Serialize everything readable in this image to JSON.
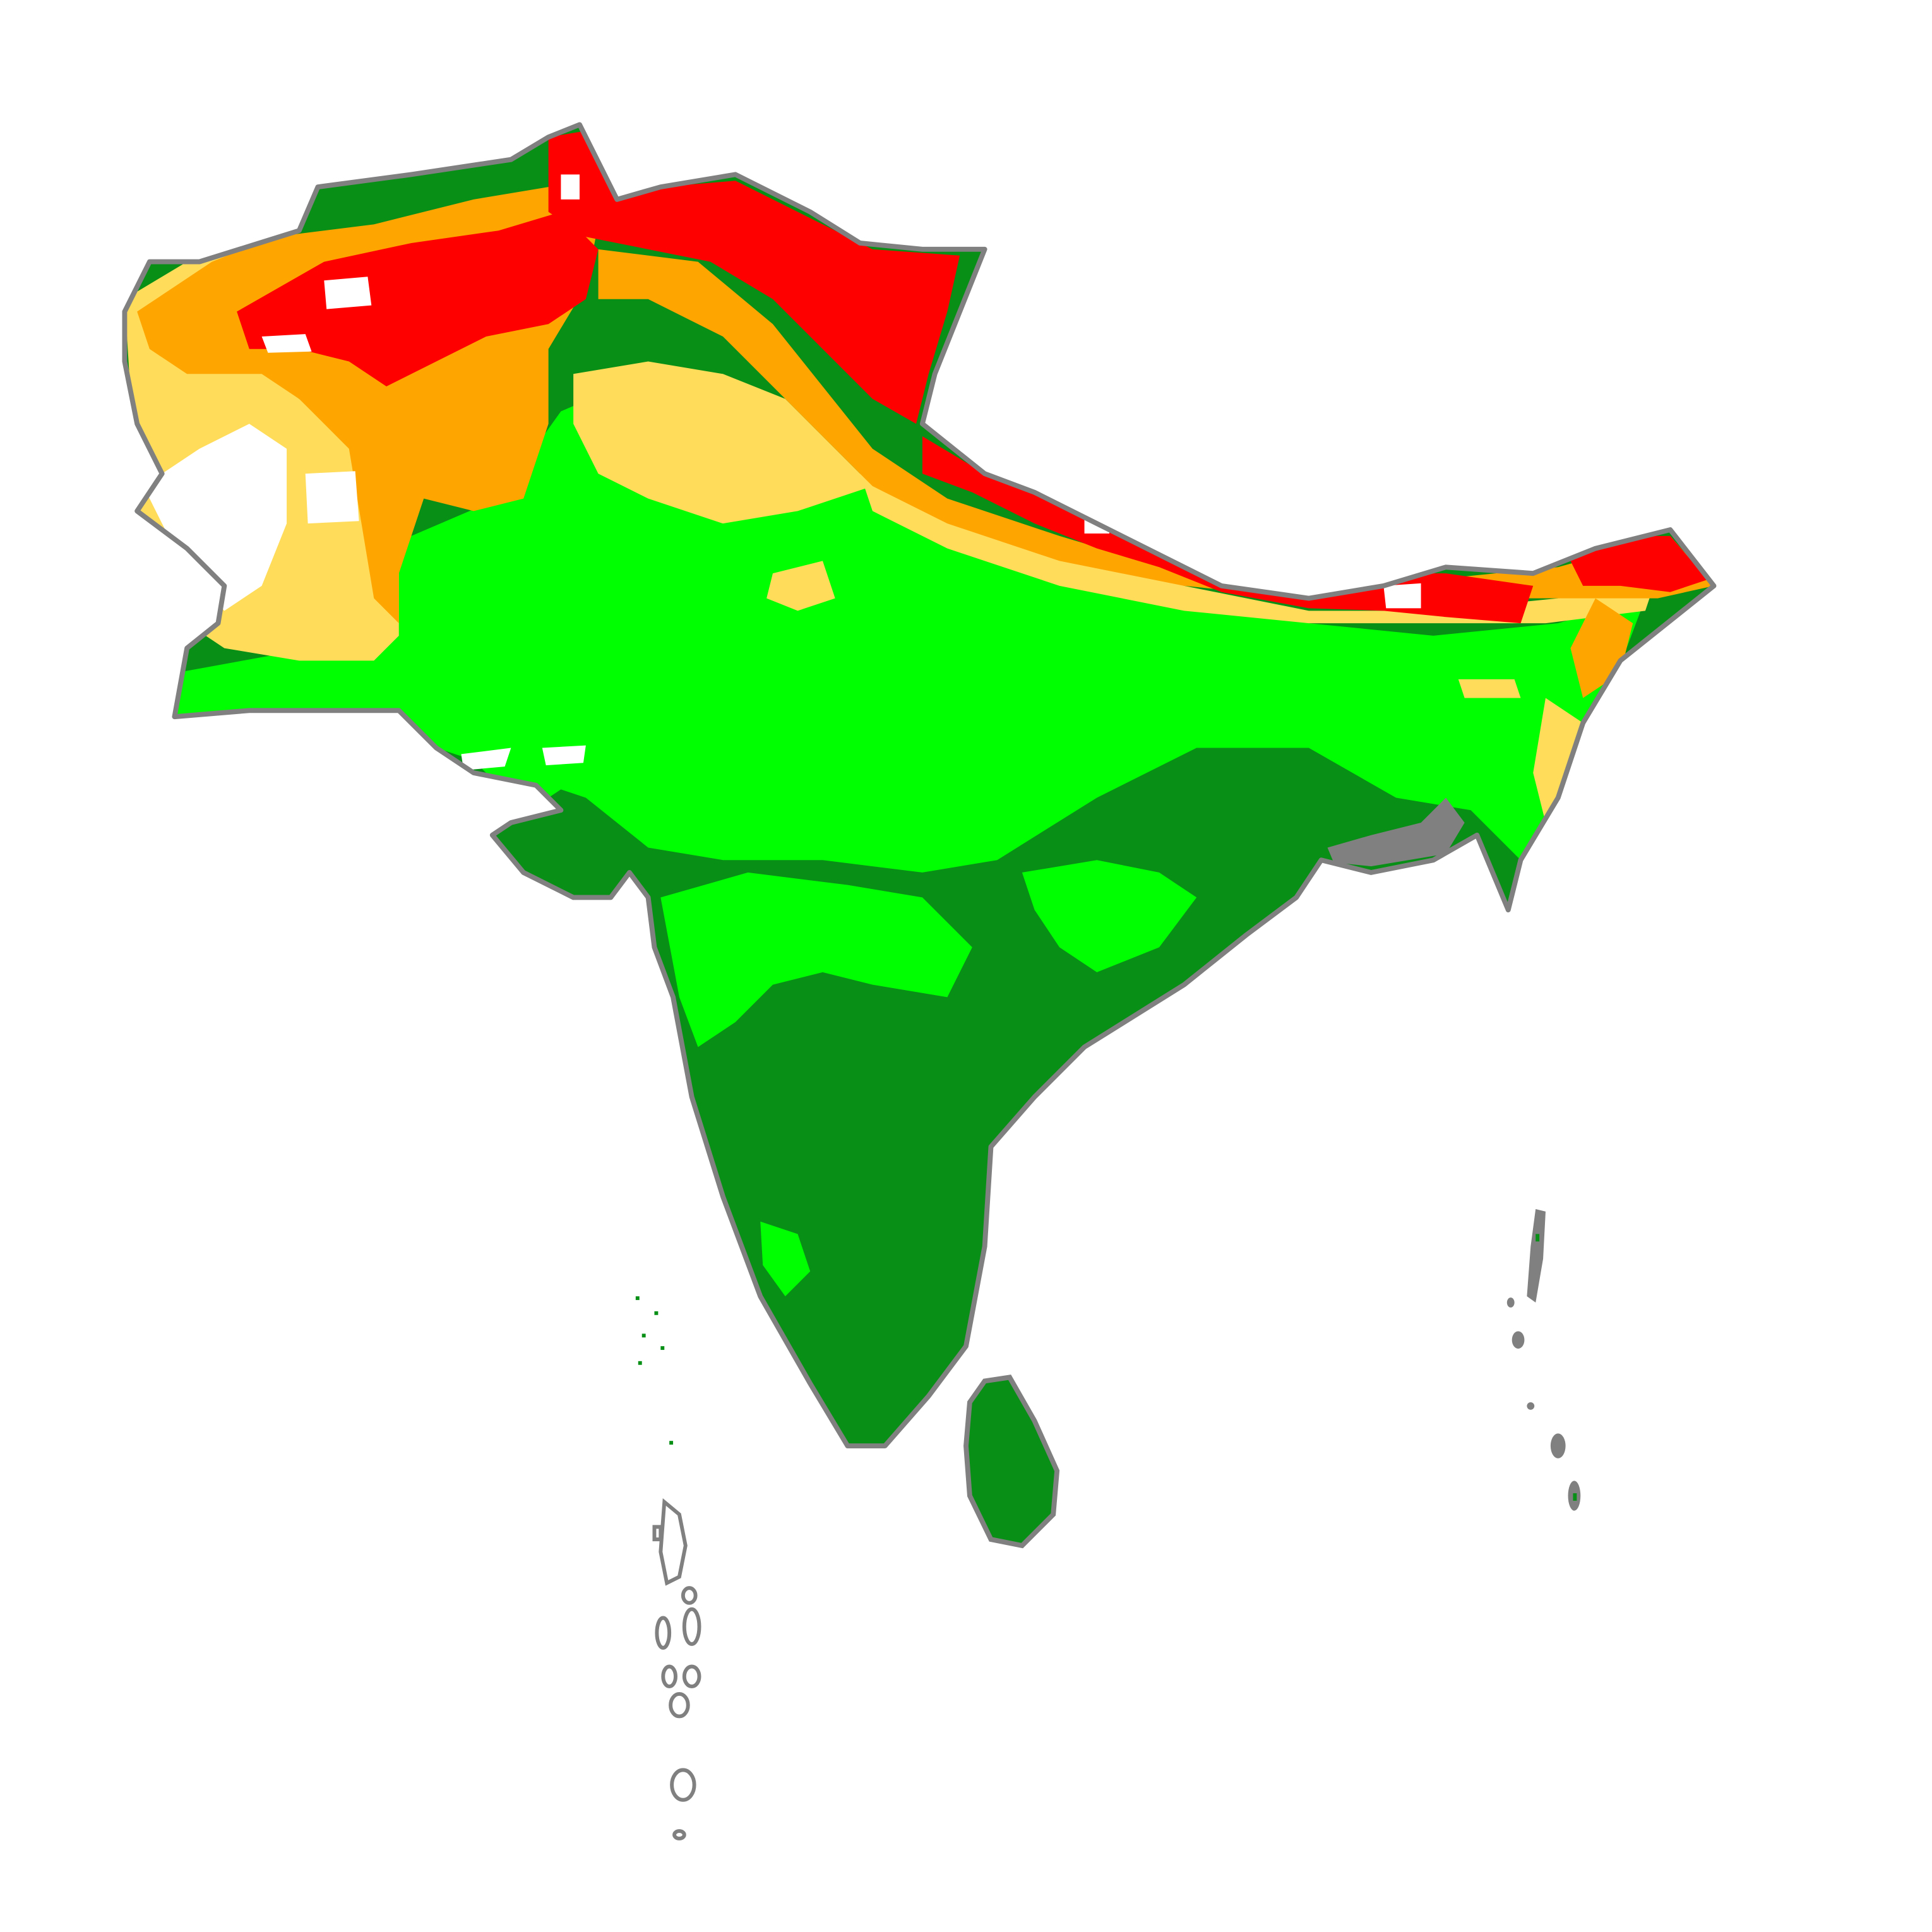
{
  "map": {
    "title": "",
    "region": "South Asia",
    "classes": [
      {
        "id": "white",
        "color": "#ffffff"
      },
      {
        "id": "red",
        "color": "#ff0000"
      },
      {
        "id": "orange",
        "color": "#ffa500"
      },
      {
        "id": "light-yellow",
        "color": "#ffdc5a"
      },
      {
        "id": "bright-green",
        "color": "#00ff00"
      },
      {
        "id": "dark-green",
        "color": "#078f16"
      }
    ],
    "outline_color": "#808080",
    "background_color": "#ffffff"
  }
}
